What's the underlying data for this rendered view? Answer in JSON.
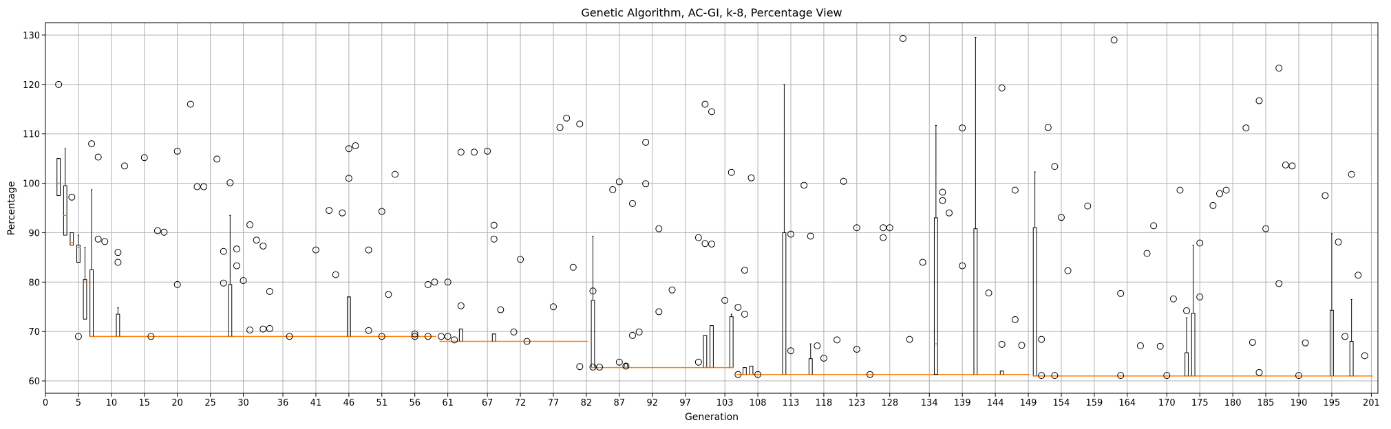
{
  "chart_data": {
    "type": "box",
    "title": "Genetic Algorithm, AC-GI, k-8, Percentage View",
    "xlabel": "Generation",
    "ylabel": "Percentage",
    "xlim": [
      0,
      202
    ],
    "ylim": [
      57.5,
      132.5
    ],
    "grid": true,
    "xticks": [
      0,
      5,
      10,
      15,
      20,
      25,
      30,
      36,
      41,
      46,
      51,
      56,
      61,
      67,
      72,
      77,
      82,
      87,
      92,
      97,
      103,
      108,
      113,
      118,
      123,
      128,
      134,
      139,
      144,
      149,
      154,
      159,
      164,
      170,
      175,
      180,
      185,
      190,
      195,
      201
    ],
    "yticks": [
      60,
      70,
      80,
      90,
      100,
      110,
      120,
      130
    ],
    "colors": {
      "box": "#000000",
      "median": "#ff7f0e",
      "grid": "#b0b0b0"
    },
    "median_line": [
      {
        "from": 2,
        "to": 2,
        "value": 100
      },
      {
        "from": 3,
        "to": 3,
        "value": 93.5
      },
      {
        "from": 6,
        "to": 6,
        "value": 80
      },
      {
        "from": 7,
        "to": 59,
        "value": 69
      },
      {
        "from": 60,
        "to": 82,
        "value": 68
      },
      {
        "from": 83,
        "to": 104,
        "value": 62.7
      },
      {
        "from": 105,
        "to": 149,
        "value": 61.3
      },
      {
        "from": 150,
        "to": 201,
        "value": 61
      }
    ],
    "boxes": [
      {
        "x": 2,
        "q1": 97.5,
        "med": 100,
        "q3": 105,
        "lo": 89.5,
        "hi": 105
      },
      {
        "x": 3,
        "q1": 89.5,
        "med": 93.5,
        "q3": 99.5,
        "lo": 87,
        "hi": 107
      },
      {
        "x": 4,
        "q1": 87.5,
        "med": 88,
        "q3": 90,
        "lo": 85.5,
        "hi": 90
      },
      {
        "x": 5,
        "q1": 84,
        "med": 87,
        "q3": 87.5,
        "lo": 80.5,
        "hi": 89.5
      },
      {
        "x": 6,
        "q1": 72.5,
        "med": 80,
        "q3": 80.5,
        "lo": 69,
        "hi": 87
      },
      {
        "x": 7,
        "q1": 69,
        "med": 69,
        "q3": 82.5,
        "lo": 69,
        "hi": 98.7
      },
      {
        "x": 11,
        "q1": 69,
        "med": 69,
        "q3": 73.5,
        "lo": 69,
        "hi": 74.8
      },
      {
        "x": 28,
        "q1": 69,
        "med": 69,
        "q3": 79.5,
        "lo": 69,
        "hi": 93.5
      },
      {
        "x": 46,
        "q1": 69,
        "med": 69,
        "q3": 77,
        "lo": 69,
        "hi": 77
      },
      {
        "x": 63,
        "q1": 68,
        "med": 68,
        "q3": 70.5,
        "lo": 68,
        "hi": 70.5
      },
      {
        "x": 68,
        "q1": 68,
        "med": 68,
        "q3": 69.5,
        "lo": 68,
        "hi": 69.5
      },
      {
        "x": 83,
        "q1": 62.7,
        "med": 62.7,
        "q3": 76.3,
        "lo": 62.7,
        "hi": 89.3
      },
      {
        "x": 88,
        "q1": 62.7,
        "med": 62.7,
        "q3": 63.5,
        "lo": 62.7,
        "hi": 63.5
      },
      {
        "x": 100,
        "q1": 62.7,
        "med": 62.7,
        "q3": 69.2,
        "lo": 62.7,
        "hi": 69.2
      },
      {
        "x": 101,
        "q1": 62.7,
        "med": 62.7,
        "q3": 71.2,
        "lo": 62.7,
        "hi": 71.2
      },
      {
        "x": 104,
        "q1": 62.7,
        "med": 62.7,
        "q3": 73,
        "lo": 62.7,
        "hi": 73.5
      },
      {
        "x": 106,
        "q1": 61.3,
        "med": 61.3,
        "q3": 62.7,
        "lo": 61.3,
        "hi": 62.7
      },
      {
        "x": 107,
        "q1": 61.3,
        "med": 61.3,
        "q3": 63,
        "lo": 61.3,
        "hi": 63
      },
      {
        "x": 112,
        "q1": 61.3,
        "med": 61.3,
        "q3": 90,
        "lo": 61.3,
        "hi": 120
      },
      {
        "x": 116,
        "q1": 61.3,
        "med": 61.3,
        "q3": 64.5,
        "lo": 61.3,
        "hi": 67.5
      },
      {
        "x": 135,
        "q1": 61.3,
        "med": 67.5,
        "q3": 93,
        "lo": 61.3,
        "hi": 111.7
      },
      {
        "x": 141,
        "q1": 61.3,
        "med": 61.3,
        "q3": 90.8,
        "lo": 61.3,
        "hi": 129.5
      },
      {
        "x": 145,
        "q1": 61.3,
        "med": 61.3,
        "q3": 62,
        "lo": 61.3,
        "hi": 62
      },
      {
        "x": 150,
        "q1": 61,
        "med": 61,
        "q3": 91,
        "lo": 61,
        "hi": 102.3
      },
      {
        "x": 173,
        "q1": 61,
        "med": 61,
        "q3": 65.7,
        "lo": 61,
        "hi": 72.8
      },
      {
        "x": 174,
        "q1": 61,
        "med": 61,
        "q3": 73.7,
        "lo": 61,
        "hi": 87.5
      },
      {
        "x": 195,
        "q1": 61,
        "med": 61,
        "q3": 74.3,
        "lo": 61,
        "hi": 89.8
      },
      {
        "x": 198,
        "q1": 61,
        "med": 61,
        "q3": 68,
        "lo": 61,
        "hi": 76.5
      }
    ],
    "outliers": [
      [
        2,
        120
      ],
      [
        4,
        97.2
      ],
      [
        5,
        69
      ],
      [
        7,
        108
      ],
      [
        8,
        105.3
      ],
      [
        8,
        88.7
      ],
      [
        9,
        88.2
      ],
      [
        11,
        86
      ],
      [
        11,
        84
      ],
      [
        12,
        103.5
      ],
      [
        15,
        105.2
      ],
      [
        16,
        69
      ],
      [
        17,
        90.4
      ],
      [
        18,
        90.1
      ],
      [
        20,
        79.5
      ],
      [
        20,
        106.5
      ],
      [
        22,
        116
      ],
      [
        23,
        99.3
      ],
      [
        24,
        99.3
      ],
      [
        26,
        104.9
      ],
      [
        27,
        86.2
      ],
      [
        27,
        79.8
      ],
      [
        28,
        100.1
      ],
      [
        29,
        86.7
      ],
      [
        29,
        83.3
      ],
      [
        30,
        80.3
      ],
      [
        31,
        91.6
      ],
      [
        31,
        70.3
      ],
      [
        32,
        88.5
      ],
      [
        33,
        87.3
      ],
      [
        33,
        70.5
      ],
      [
        34,
        70.6
      ],
      [
        34,
        78.1
      ],
      [
        37,
        69
      ],
      [
        41,
        86.5
      ],
      [
        43,
        94.5
      ],
      [
        44,
        81.5
      ],
      [
        45,
        94
      ],
      [
        46,
        101
      ],
      [
        46,
        107
      ],
      [
        47,
        107.6
      ],
      [
        49,
        86.5
      ],
      [
        49,
        70.2
      ],
      [
        51,
        94.3
      ],
      [
        51,
        69
      ],
      [
        52,
        77.5
      ],
      [
        53,
        101.8
      ],
      [
        56,
        69.5
      ],
      [
        56,
        69
      ],
      [
        58,
        79.5
      ],
      [
        58,
        69
      ],
      [
        59,
        80
      ],
      [
        60,
        69
      ],
      [
        61,
        80
      ],
      [
        61,
        69
      ],
      [
        62,
        68.3
      ],
      [
        63,
        75.2
      ],
      [
        63,
        106.3
      ],
      [
        65,
        106.3
      ],
      [
        67,
        106.5
      ],
      [
        68,
        91.5
      ],
      [
        68,
        88.7
      ],
      [
        69,
        74.4
      ],
      [
        71,
        69.9
      ],
      [
        72,
        84.6
      ],
      [
        73,
        68
      ],
      [
        77,
        75
      ],
      [
        78,
        111.3
      ],
      [
        79,
        113.2
      ],
      [
        80,
        83
      ],
      [
        81,
        112
      ],
      [
        81,
        62.9
      ],
      [
        83,
        78.2
      ],
      [
        83,
        62.8
      ],
      [
        84,
        62.8
      ],
      [
        86,
        98.7
      ],
      [
        87,
        100.3
      ],
      [
        87,
        63.8
      ],
      [
        88,
        63
      ],
      [
        89,
        95.9
      ],
      [
        89,
        69.2
      ],
      [
        90,
        69.9
      ],
      [
        91,
        108.3
      ],
      [
        91,
        99.9
      ],
      [
        93,
        90.8
      ],
      [
        93,
        74
      ],
      [
        95,
        78.4
      ],
      [
        99,
        89
      ],
      [
        99,
        63.8
      ],
      [
        100,
        116
      ],
      [
        100,
        87.8
      ],
      [
        101,
        114.5
      ],
      [
        101,
        87.7
      ],
      [
        103,
        76.3
      ],
      [
        104,
        102.2
      ],
      [
        105,
        74.9
      ],
      [
        105,
        61.3
      ],
      [
        106,
        82.4
      ],
      [
        106,
        73.5
      ],
      [
        107,
        101.1
      ],
      [
        108,
        61.3
      ],
      [
        113,
        89.7
      ],
      [
        113,
        66.1
      ],
      [
        115,
        99.6
      ],
      [
        116,
        89.3
      ],
      [
        117,
        67.1
      ],
      [
        118,
        64.6
      ],
      [
        120,
        68.3
      ],
      [
        121,
        100.4
      ],
      [
        123,
        91
      ],
      [
        123,
        66.4
      ],
      [
        125,
        61.3
      ],
      [
        127,
        91
      ],
      [
        127,
        89
      ],
      [
        128,
        91
      ],
      [
        130,
        129.3
      ],
      [
        131,
        68.4
      ],
      [
        133,
        84
      ],
      [
        136,
        98.2
      ],
      [
        136,
        96.5
      ],
      [
        137,
        94
      ],
      [
        139,
        111.2
      ],
      [
        139,
        83.3
      ],
      [
        143,
        77.8
      ],
      [
        145,
        119.3
      ],
      [
        145,
        67.4
      ],
      [
        147,
        98.6
      ],
      [
        147,
        72.4
      ],
      [
        148,
        67.2
      ],
      [
        151,
        68.4
      ],
      [
        151,
        61.1
      ],
      [
        152,
        111.3
      ],
      [
        153,
        103.4
      ],
      [
        153,
        61.1
      ],
      [
        154,
        93.1
      ],
      [
        155,
        82.3
      ],
      [
        158,
        95.4
      ],
      [
        162,
        129
      ],
      [
        163,
        77.7
      ],
      [
        163,
        61.1
      ],
      [
        166,
        67.1
      ],
      [
        167,
        85.8
      ],
      [
        168,
        91.4
      ],
      [
        169,
        67
      ],
      [
        170,
        61.1
      ],
      [
        171,
        76.6
      ],
      [
        172,
        98.6
      ],
      [
        173,
        74.2
      ],
      [
        175,
        87.9
      ],
      [
        175,
        77
      ],
      [
        177,
        95.5
      ],
      [
        178,
        97.9
      ],
      [
        179,
        98.6
      ],
      [
        182,
        111.2
      ],
      [
        183,
        67.8
      ],
      [
        184,
        116.7
      ],
      [
        184,
        61.7
      ],
      [
        185,
        90.8
      ],
      [
        187,
        123.3
      ],
      [
        187,
        79.7
      ],
      [
        188,
        103.7
      ],
      [
        189,
        103.5
      ],
      [
        190,
        61.1
      ],
      [
        191,
        67.7
      ],
      [
        194,
        97.5
      ],
      [
        196,
        88.1
      ],
      [
        197,
        69
      ],
      [
        198,
        101.8
      ],
      [
        199,
        81.4
      ],
      [
        200,
        65.1
      ]
    ]
  }
}
